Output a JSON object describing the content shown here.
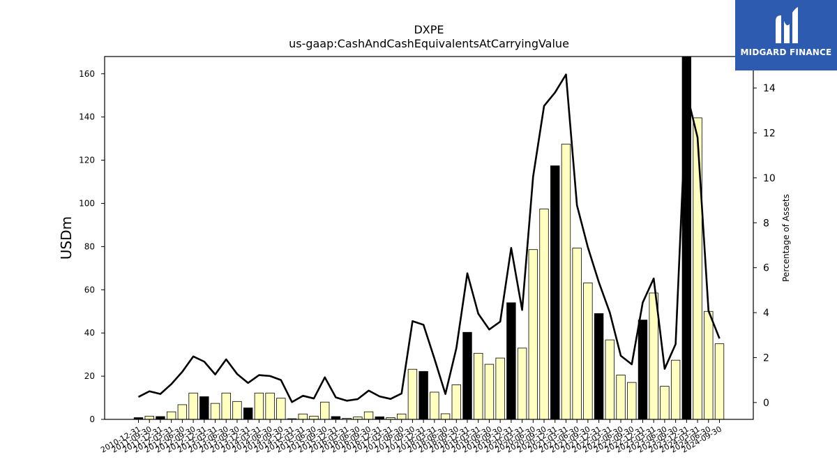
{
  "chart_data": {
    "type": "bar",
    "title": "DXPE",
    "subtitle": "us-gaap:CashAndCashEquivalentsAtCarryingValue",
    "ylabel": "USDm",
    "y2label": "Percentage of Assets",
    "ylim": [
      0,
      168
    ],
    "y2lim": [
      -0.75,
      15.4
    ],
    "yticks": [
      0,
      20,
      40,
      60,
      80,
      100,
      120,
      140,
      160
    ],
    "y2ticks": [
      0,
      2,
      4,
      6,
      8,
      10,
      12,
      14
    ],
    "categories": [
      "2010-12-31",
      "2011-09-30",
      "2011-12-31",
      "2012-03-31",
      "2012-06-30",
      "2012-09-30",
      "2012-12-31",
      "2013-03-31",
      "2013-06-30",
      "2013-09-30",
      "2013-12-31",
      "2014-03-31",
      "2014-06-30",
      "2014-09-30",
      "2014-12-31",
      "2015-03-31",
      "2015-06-30",
      "2015-09-30",
      "2015-12-31",
      "2016-03-31",
      "2016-06-30",
      "2016-09-30",
      "2016-12-31",
      "2017-03-31",
      "2017-06-30",
      "2017-09-30",
      "2017-12-31",
      "2018-03-31",
      "2018-06-30",
      "2018-09-30",
      "2018-12-31",
      "2019-03-31",
      "2019-06-30",
      "2019-09-30",
      "2019-12-31",
      "2020-03-31",
      "2020-06-30",
      "2020-09-30",
      "2020-12-31",
      "2021-03-31",
      "2021-06-30",
      "2021-09-30",
      "2021-12-31",
      "2022-03-31",
      "2022-06-30",
      "2022-09-30",
      "2022-12-31",
      "2023-03-31",
      "2023-06-30",
      "2023-09-30",
      "2023-12-31",
      "2024-03-31",
      "2024-06-30",
      "2024-09-30"
    ],
    "series": [
      {
        "values": [
          0.8,
          1.5,
          1.3,
          3.5,
          6.8,
          12.2,
          10.5,
          7.4,
          12.2,
          8.3,
          5.3,
          12.2,
          12.2,
          9.8,
          0.3,
          2.5,
          1.5,
          8.0,
          1.3,
          0.5,
          1.1,
          3.5,
          1.2,
          0.8,
          2.5,
          23.2,
          22.2,
          12.6,
          2.6,
          16.0,
          40.3,
          30.6,
          25.5,
          28.4,
          54.0,
          33.0,
          78.6,
          97.4,
          117.4,
          127.4,
          79.3,
          63.2,
          49.0,
          36.8,
          20.5,
          17.1,
          46.0,
          58.5,
          15.3,
          27.4,
          168.0,
          139.6,
          50.0,
          35.0
        ]
      },
      {
        "values": [
          0.25,
          0.5,
          0.38,
          0.82,
          1.37,
          2.05,
          1.82,
          1.25,
          1.92,
          1.27,
          0.87,
          1.22,
          1.18,
          1.0,
          0.02,
          0.3,
          0.18,
          1.12,
          0.23,
          0.08,
          0.15,
          0.53,
          0.27,
          0.16,
          0.4,
          3.62,
          3.46,
          1.95,
          0.38,
          2.42,
          5.75,
          3.95,
          3.25,
          3.6,
          6.88,
          4.12,
          10.05,
          13.2,
          13.8,
          14.6,
          8.78,
          6.9,
          5.35,
          4.0,
          2.08,
          1.7,
          4.45,
          5.52,
          1.5,
          2.6,
          13.8,
          11.8,
          4.08,
          2.85
        ]
      }
    ],
    "highlighted_bars": [
      "2010-12-31",
      "2011-12-31",
      "2012-12-31",
      "2013-12-31",
      "2015-12-31",
      "2016-12-31",
      "2017-12-31",
      "2018-12-31",
      "2019-12-31",
      "2020-12-31",
      "2021-12-31",
      "2022-12-31",
      "2023-12-31"
    ],
    "colors": {
      "bar": "#ffffc0",
      "bar_highlight": "#000000",
      "line": "#000000"
    },
    "grid": false,
    "legend": "none"
  },
  "logo": {
    "text": "MIDGARD FINANCE",
    "color": "#2d5bb0"
  }
}
